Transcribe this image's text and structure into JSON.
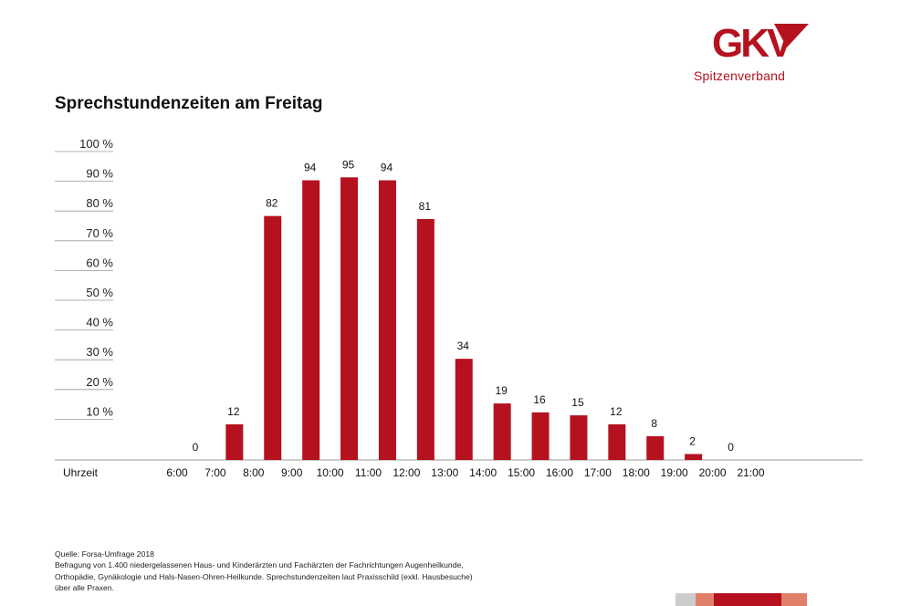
{
  "brand": {
    "name": "GKV",
    "subtitle": "Spitzenverband",
    "color": "#b5111f"
  },
  "title": "Sprechstundenzeiten am Freitag",
  "chart_data": {
    "type": "bar",
    "title": "Sprechstundenzeiten am Freitag",
    "xlabel": "Uhrzeit",
    "ylabel": "",
    "ylim": [
      0,
      100
    ],
    "y_ticks": [
      10,
      20,
      30,
      40,
      50,
      60,
      70,
      80,
      90,
      100
    ],
    "y_tick_labels": [
      "10 %",
      "20 %",
      "30 %",
      "40 %",
      "50 %",
      "60 %",
      "70 %",
      "80 %",
      "90 %",
      "100 %"
    ],
    "x_tick_labels": [
      "6:00",
      "7:00",
      "8:00",
      "9:00",
      "10:00",
      "11:00",
      "12:00",
      "13:00",
      "14:00",
      "15:00",
      "16:00",
      "17:00",
      "18:00",
      "19:00",
      "20:00",
      "21:00"
    ],
    "categories": [
      "6:00",
      "7:00",
      "8:00",
      "9:00",
      "10:00",
      "11:00",
      "12:00",
      "13:00",
      "14:00",
      "15:00",
      "16:00",
      "17:00",
      "18:00",
      "19:00",
      "20:00"
    ],
    "values": [
      0,
      12,
      82,
      94,
      95,
      94,
      81,
      34,
      19,
      16,
      15,
      12,
      8,
      2,
      0
    ],
    "bar_color": "#b5111f",
    "grid": true
  },
  "footnote": {
    "source": "Quelle: Forsa-Umfrage 2018",
    "line1": "Befragung von 1.400 niedergelassenen Haus- und Kinderärzten und Fachärzten der Fachrichtungen Augenheilkunde,",
    "line2": "Orthopädie, Gynäkologie und Hals-Nasen-Ohren-Heilkunde. Sprechstundenzeiten laut Praxisschild (exkl. Hausbesuche)",
    "line3": "über alle Praxen."
  },
  "footer_strip_colors": [
    "#cccccc",
    "#e0806a",
    "#b5111f",
    "#e0806a"
  ]
}
